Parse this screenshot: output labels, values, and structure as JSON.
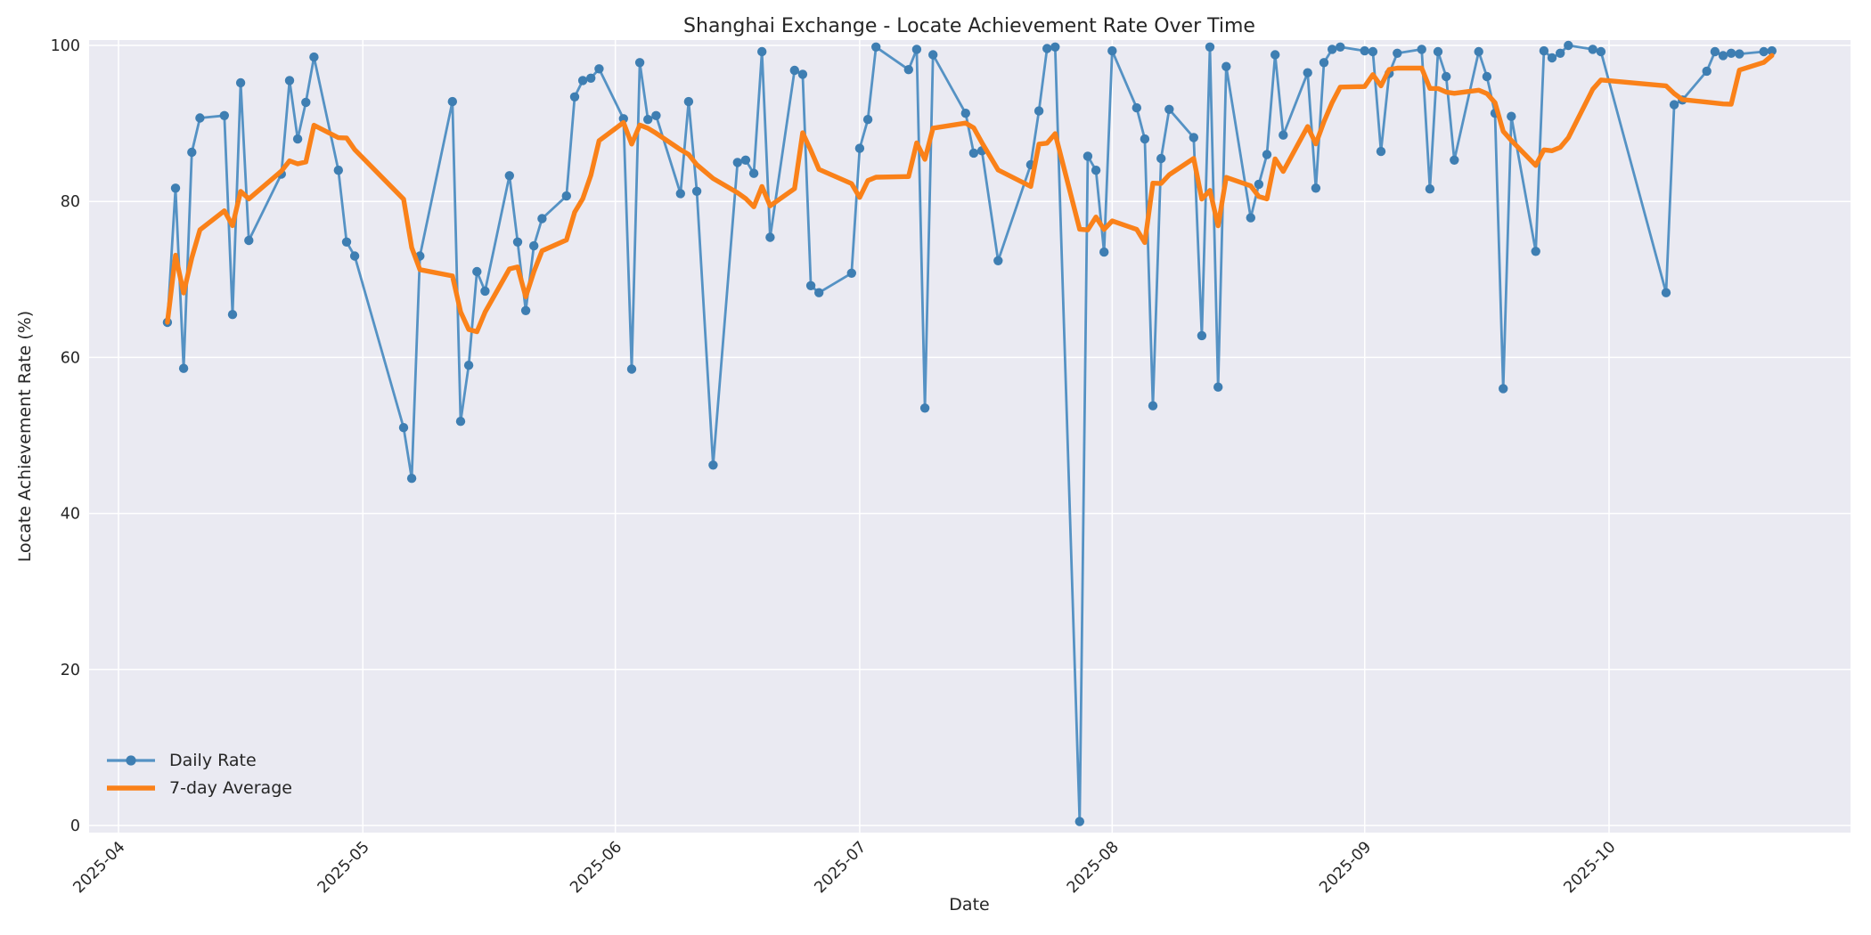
{
  "title": "Shanghai Exchange - Locate Achievement Rate Over Time",
  "axes": {
    "xlabel": "Date",
    "ylabel": "Locate Achievement Rate (%)",
    "yticks": [
      0,
      20,
      40,
      60,
      80,
      100
    ],
    "xticks": [
      "2025-04",
      "2025-05",
      "2025-06",
      "2025-07",
      "2025-08",
      "2025-09",
      "2025-10"
    ]
  },
  "legend": {
    "daily_label": "Daily Rate",
    "avg_label": "7-day Average"
  },
  "colors": {
    "plot_background": "#EAEAF2",
    "figure_background": "#FFFFFF",
    "gridline": "#FFFFFF",
    "daily_line": "#5592C4",
    "daily_marker": "#3E7EB2",
    "avg_line": "#FA8119",
    "text": "#262626"
  },
  "chart_data": {
    "type": "line",
    "title": "Shanghai Exchange - Locate Achievement Rate Over Time",
    "xlabel": "Date",
    "ylabel": "Locate Achievement Rate (%)",
    "ylim": [
      0,
      100
    ],
    "x_domain": [
      "2025-03-28",
      "2025-10-31"
    ],
    "grid": true,
    "legend_position": "lower left",
    "month_ticks": [
      "2025-04-01",
      "2025-05-01",
      "2025-06-01",
      "2025-07-01",
      "2025-08-01",
      "2025-09-01",
      "2025-10-01"
    ],
    "series": [
      {
        "name": "Daily Rate",
        "style": "line+markers",
        "points": [
          [
            "2025-04-07",
            64.5
          ],
          [
            "2025-04-08",
            81.7
          ],
          [
            "2025-04-09",
            58.6
          ],
          [
            "2025-04-10",
            86.3
          ],
          [
            "2025-04-11",
            90.7
          ],
          [
            "2025-04-14",
            91.0
          ],
          [
            "2025-04-15",
            65.5
          ],
          [
            "2025-04-16",
            95.2
          ],
          [
            "2025-04-17",
            75.0
          ],
          [
            "2025-04-21",
            83.5
          ],
          [
            "2025-04-22",
            95.5
          ],
          [
            "2025-04-23",
            88.0
          ],
          [
            "2025-04-24",
            92.7
          ],
          [
            "2025-04-25",
            98.5
          ],
          [
            "2025-04-28",
            84.0
          ],
          [
            "2025-04-29",
            74.8
          ],
          [
            "2025-04-30",
            73.0
          ],
          [
            "2025-05-06",
            51.0
          ],
          [
            "2025-05-07",
            44.5
          ],
          [
            "2025-05-08",
            73.0
          ],
          [
            "2025-05-12",
            92.8
          ],
          [
            "2025-05-13",
            51.8
          ],
          [
            "2025-05-14",
            59.0
          ],
          [
            "2025-05-15",
            71.0
          ],
          [
            "2025-05-16",
            68.5
          ],
          [
            "2025-05-19",
            83.3
          ],
          [
            "2025-05-20",
            74.8
          ],
          [
            "2025-05-21",
            66.0
          ],
          [
            "2025-05-22",
            74.3
          ],
          [
            "2025-05-23",
            77.8
          ],
          [
            "2025-05-26",
            80.7
          ],
          [
            "2025-05-27",
            93.4
          ],
          [
            "2025-05-28",
            95.5
          ],
          [
            "2025-05-29",
            95.8
          ],
          [
            "2025-05-30",
            97.0
          ],
          [
            "2025-06-02",
            90.6
          ],
          [
            "2025-06-03",
            58.5
          ],
          [
            "2025-06-04",
            97.8
          ],
          [
            "2025-06-05",
            90.5
          ],
          [
            "2025-06-06",
            91.0
          ],
          [
            "2025-06-09",
            81.0
          ],
          [
            "2025-06-10",
            92.8
          ],
          [
            "2025-06-11",
            81.3
          ],
          [
            "2025-06-13",
            46.2
          ],
          [
            "2025-06-16",
            85.0
          ],
          [
            "2025-06-17",
            85.3
          ],
          [
            "2025-06-18",
            83.6
          ],
          [
            "2025-06-19",
            99.2
          ],
          [
            "2025-06-20",
            75.4
          ],
          [
            "2025-06-23",
            96.8
          ],
          [
            "2025-06-24",
            96.3
          ],
          [
            "2025-06-25",
            69.2
          ],
          [
            "2025-06-26",
            68.3
          ],
          [
            "2025-06-30",
            70.8
          ],
          [
            "2025-07-01",
            86.8
          ],
          [
            "2025-07-02",
            90.5
          ],
          [
            "2025-07-03",
            99.8
          ],
          [
            "2025-07-07",
            96.9
          ],
          [
            "2025-07-08",
            99.5
          ],
          [
            "2025-07-09",
            53.5
          ],
          [
            "2025-07-10",
            98.8
          ],
          [
            "2025-07-14",
            91.3
          ],
          [
            "2025-07-15",
            86.2
          ],
          [
            "2025-07-16",
            86.5
          ],
          [
            "2025-07-18",
            72.4
          ],
          [
            "2025-07-22",
            84.7
          ],
          [
            "2025-07-23",
            91.6
          ],
          [
            "2025-07-24",
            99.6
          ],
          [
            "2025-07-25",
            99.8
          ],
          [
            "2025-07-28",
            0.5
          ],
          [
            "2025-07-29",
            85.8
          ],
          [
            "2025-07-30",
            84.0
          ],
          [
            "2025-07-31",
            73.5
          ],
          [
            "2025-08-01",
            99.3
          ],
          [
            "2025-08-04",
            92.0
          ],
          [
            "2025-08-05",
            88.0
          ],
          [
            "2025-08-06",
            53.8
          ],
          [
            "2025-08-07",
            85.5
          ],
          [
            "2025-08-08",
            91.8
          ],
          [
            "2025-08-11",
            88.2
          ],
          [
            "2025-08-12",
            62.8
          ],
          [
            "2025-08-13",
            99.8
          ],
          [
            "2025-08-14",
            56.2
          ],
          [
            "2025-08-15",
            97.3
          ],
          [
            "2025-08-18",
            77.9
          ],
          [
            "2025-08-19",
            82.2
          ],
          [
            "2025-08-20",
            86.0
          ],
          [
            "2025-08-21",
            98.8
          ],
          [
            "2025-08-22",
            88.5
          ],
          [
            "2025-08-25",
            96.5
          ],
          [
            "2025-08-26",
            81.7
          ],
          [
            "2025-08-27",
            97.8
          ],
          [
            "2025-08-28",
            99.5
          ],
          [
            "2025-08-29",
            99.8
          ],
          [
            "2025-09-01",
            99.3
          ],
          [
            "2025-09-02",
            99.2
          ],
          [
            "2025-09-03",
            86.4
          ],
          [
            "2025-09-04",
            96.4
          ],
          [
            "2025-09-05",
            99.0
          ],
          [
            "2025-09-08",
            99.5
          ],
          [
            "2025-09-09",
            81.6
          ],
          [
            "2025-09-10",
            99.2
          ],
          [
            "2025-09-11",
            96.0
          ],
          [
            "2025-09-12",
            85.3
          ],
          [
            "2025-09-15",
            99.2
          ],
          [
            "2025-09-16",
            96.0
          ],
          [
            "2025-09-17",
            91.3
          ],
          [
            "2025-09-18",
            56.0
          ],
          [
            "2025-09-19",
            90.9
          ],
          [
            "2025-09-22",
            73.6
          ],
          [
            "2025-09-23",
            99.3
          ],
          [
            "2025-09-24",
            98.4
          ],
          [
            "2025-09-25",
            99.0
          ],
          [
            "2025-09-26",
            100.0
          ],
          [
            "2025-09-29",
            99.5
          ],
          [
            "2025-09-30",
            99.2
          ],
          [
            "2025-10-08",
            68.3
          ],
          [
            "2025-10-09",
            92.4
          ],
          [
            "2025-10-10",
            93.0
          ],
          [
            "2025-10-13",
            96.7
          ],
          [
            "2025-10-14",
            99.2
          ],
          [
            "2025-10-15",
            98.7
          ],
          [
            "2025-10-16",
            99.0
          ],
          [
            "2025-10-17",
            98.9
          ],
          [
            "2025-10-20",
            99.2
          ],
          [
            "2025-10-21",
            99.3
          ]
        ]
      },
      {
        "name": "7-day Average",
        "style": "line",
        "derivation": "rolling mean of Daily Rate over a 7-point window, min_periods=1"
      }
    ]
  }
}
